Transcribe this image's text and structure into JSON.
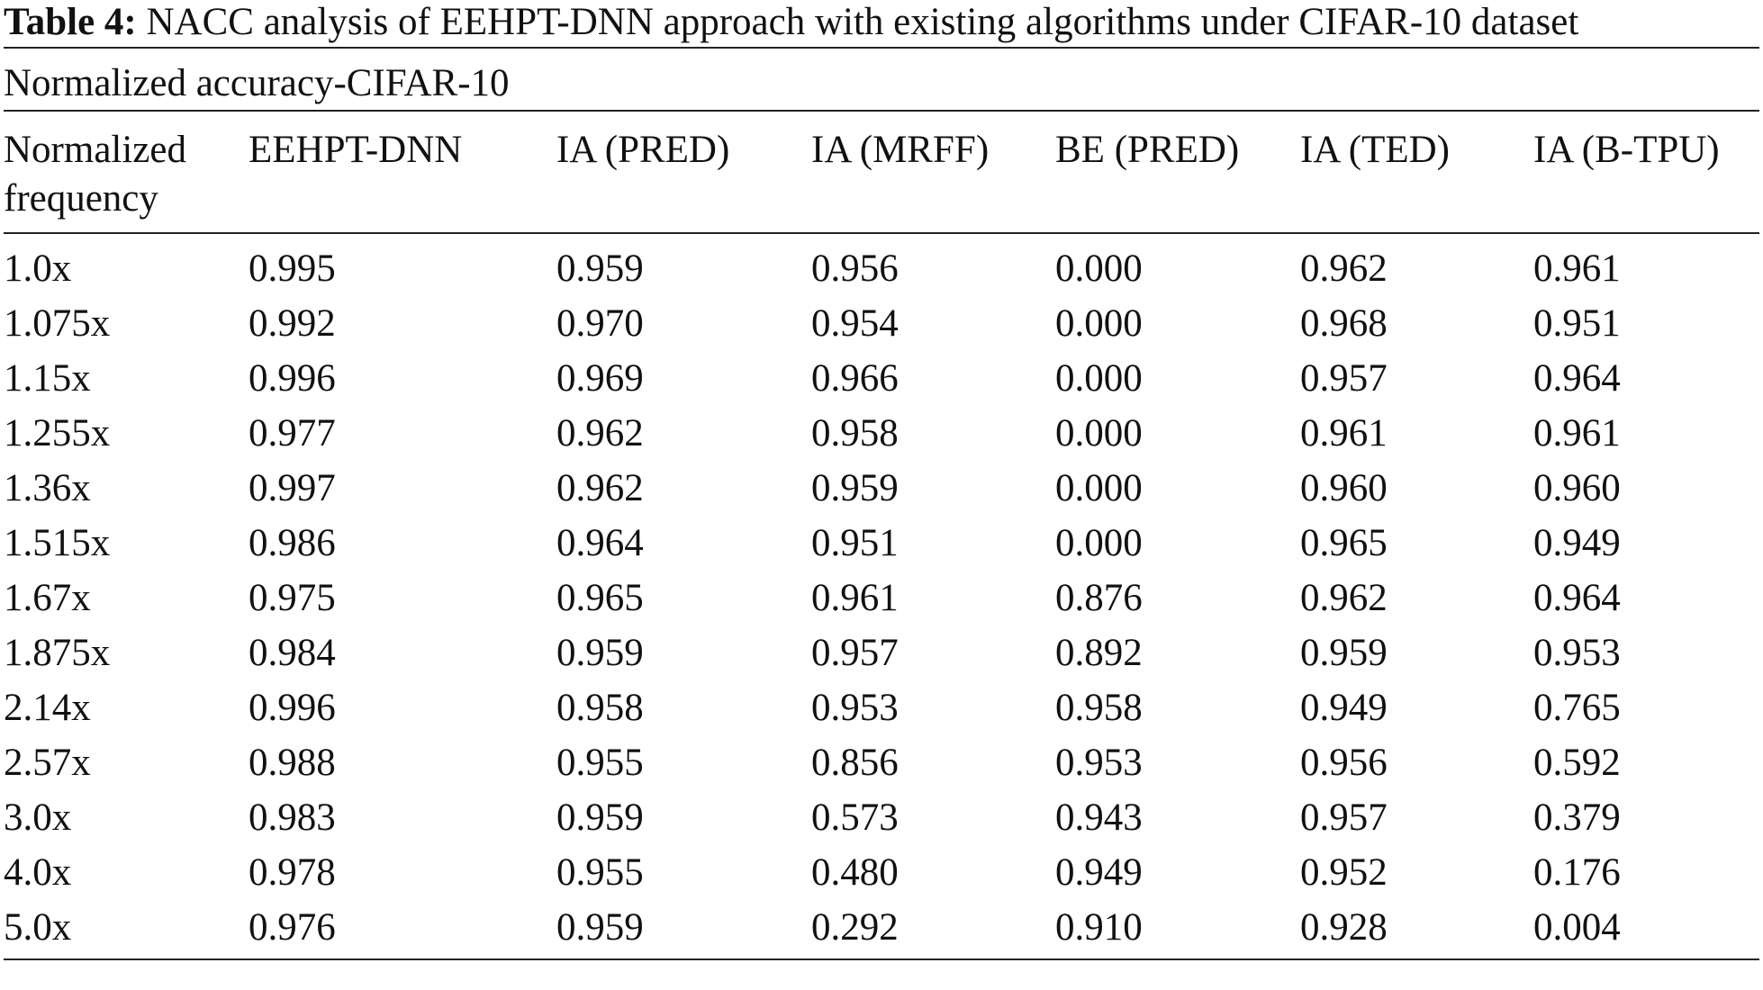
{
  "caption": {
    "label": "Table 4:",
    "text": " NACC analysis of EEHPT-DNN approach with existing algorithms under CIFAR-10 dataset"
  },
  "subtitle": "Normalized accuracy-CIFAR-10",
  "columns": [
    "Normalized frequency",
    "EEHPT-DNN",
    "IA (PRED)",
    "IA (MRFF)",
    "BE (PRED)",
    "IA (TED)",
    "IA (B-TPU)"
  ],
  "rows": [
    [
      "1.0x",
      "0.995",
      "0.959",
      "0.956",
      "0.000",
      "0.962",
      "0.961"
    ],
    [
      "1.075x",
      "0.992",
      "0.970",
      "0.954",
      "0.000",
      "0.968",
      "0.951"
    ],
    [
      "1.15x",
      "0.996",
      "0.969",
      "0.966",
      "0.000",
      "0.957",
      "0.964"
    ],
    [
      "1.255x",
      "0.977",
      "0.962",
      "0.958",
      "0.000",
      "0.961",
      "0.961"
    ],
    [
      "1.36x",
      "0.997",
      "0.962",
      "0.959",
      "0.000",
      "0.960",
      "0.960"
    ],
    [
      "1.515x",
      "0.986",
      "0.964",
      "0.951",
      "0.000",
      "0.965",
      "0.949"
    ],
    [
      "1.67x",
      "0.975",
      "0.965",
      "0.961",
      "0.876",
      "0.962",
      "0.964"
    ],
    [
      "1.875x",
      "0.984",
      "0.959",
      "0.957",
      "0.892",
      "0.959",
      "0.953"
    ],
    [
      "2.14x",
      "0.996",
      "0.958",
      "0.953",
      "0.958",
      "0.949",
      "0.765"
    ],
    [
      "2.57x",
      "0.988",
      "0.955",
      "0.856",
      "0.953",
      "0.956",
      "0.592"
    ],
    [
      "3.0x",
      "0.983",
      "0.959",
      "0.573",
      "0.943",
      "0.957",
      "0.379"
    ],
    [
      "4.0x",
      "0.978",
      "0.955",
      "0.480",
      "0.949",
      "0.952",
      "0.176"
    ],
    [
      "5.0x",
      "0.976",
      "0.959",
      "0.292",
      "0.910",
      "0.928",
      "0.004"
    ]
  ]
}
